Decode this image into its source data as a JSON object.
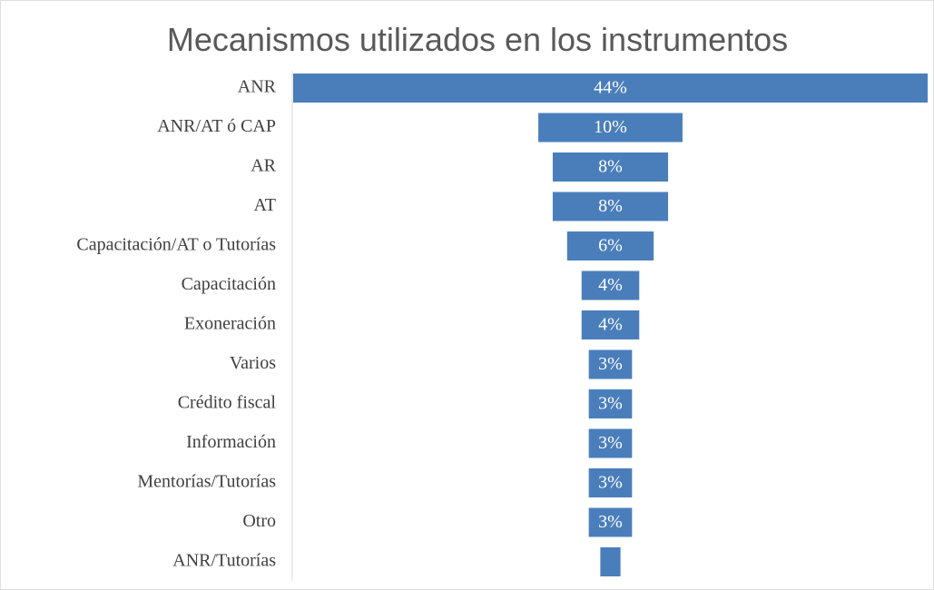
{
  "chart_data": {
    "type": "funnel",
    "title": "Mecanismos utilizados en los instrumentos",
    "categories": [
      "ANR",
      "ANR/AT ó CAP",
      "AR",
      "AT",
      "Capacitación/AT o Tutorías",
      "Capacitación",
      "Exoneración",
      "Varios",
      "Crédito fiscal",
      "Información",
      "Mentorías/Tutorías",
      "Otro",
      "ANR/Tutorías"
    ],
    "values": [
      44,
      10,
      8,
      8,
      6,
      4,
      4,
      3,
      3,
      3,
      3,
      3,
      1.4
    ],
    "value_labels": [
      "44%",
      "10%",
      "8%",
      "8%",
      "6%",
      "4%",
      "4%",
      "3%",
      "3%",
      "3%",
      "3%",
      "3%",
      null
    ],
    "color": "#4a7ebb"
  }
}
